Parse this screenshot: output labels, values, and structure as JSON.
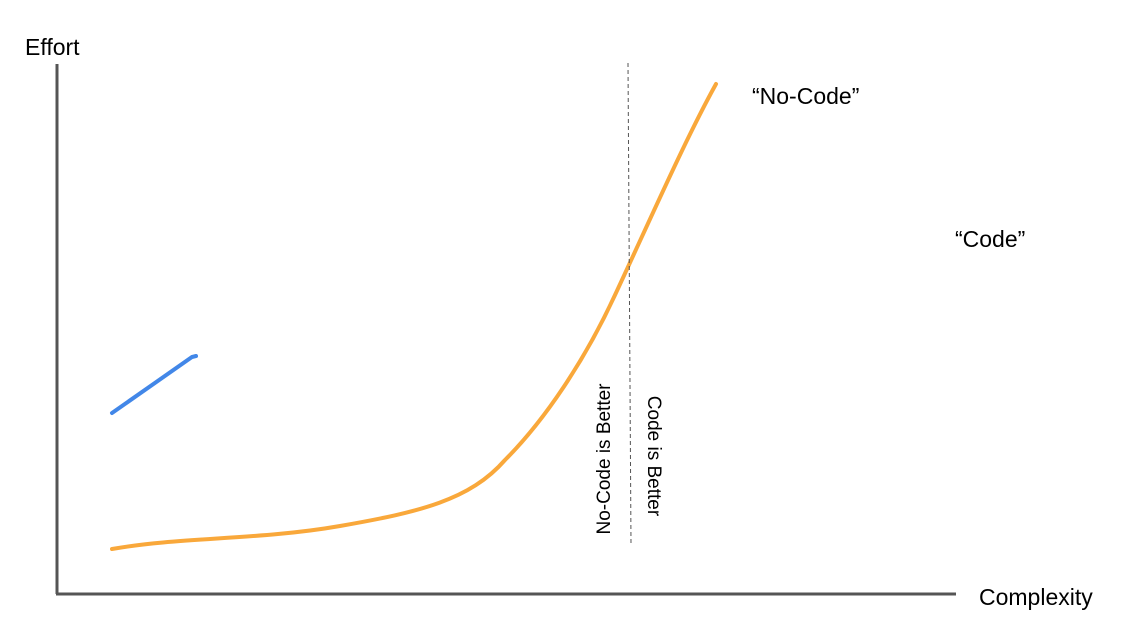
{
  "axes": {
    "y_label": "Effort",
    "x_label": "Complexity"
  },
  "series": {
    "no_code_label": "“No-Code”",
    "code_label": "“Code”",
    "no_code_color": "#F9A83B",
    "code_color": "#4287E8"
  },
  "divider": {
    "left_label": "No-Code is Better",
    "right_label": "Code is Better"
  }
}
